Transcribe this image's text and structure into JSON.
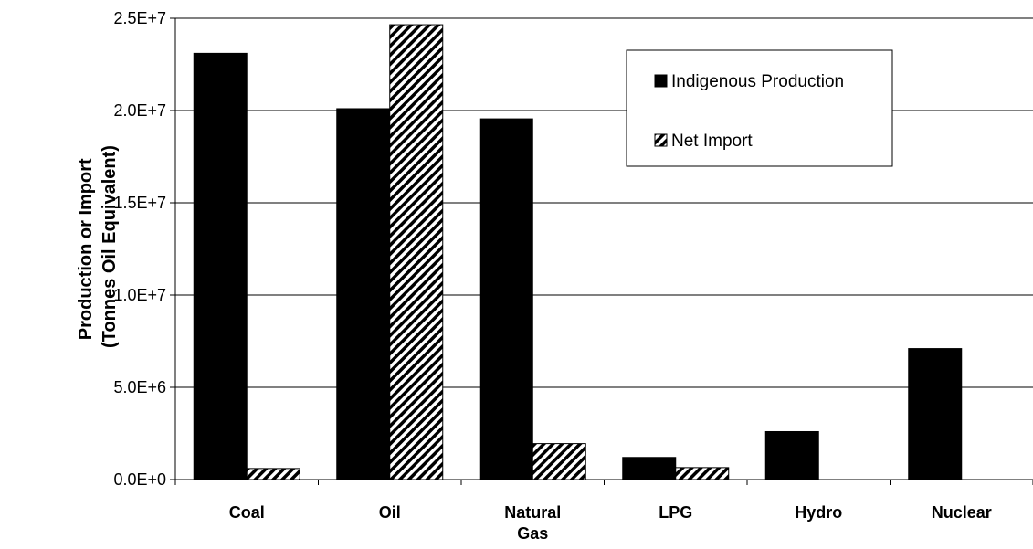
{
  "chart_data": {
    "type": "bar",
    "categories": [
      [
        "Coal"
      ],
      [
        "Oil"
      ],
      [
        "Natural",
        "Gas"
      ],
      [
        "LPG"
      ],
      [
        "Hydro"
      ],
      [
        "Nuclear"
      ]
    ],
    "series": [
      {
        "name": "Indigenous Production",
        "values": [
          23100000,
          20100000,
          19550000,
          1200000,
          2600000,
          7100000
        ],
        "color": "#000000",
        "pattern": "solid"
      },
      {
        "name": "Net Import",
        "values": [
          600000,
          24650000,
          1950000,
          650000,
          0,
          0
        ],
        "color": "#000000",
        "pattern": "diagonal-hatch"
      }
    ],
    "ylabel": [
      "Production or Import",
      "(Tonnes Oil Equivalent)"
    ],
    "xlabel": "",
    "ylim": [
      0,
      25000000
    ],
    "yticks": [
      0,
      5000000,
      10000000,
      15000000,
      20000000,
      25000000
    ],
    "ytick_labels": [
      "0.0E+0",
      "5.0E+6",
      "1.0E+7",
      "1.5E+7",
      "2.0E+7",
      "2.5E+7"
    ],
    "grid": true,
    "legend_position": "top-right"
  }
}
